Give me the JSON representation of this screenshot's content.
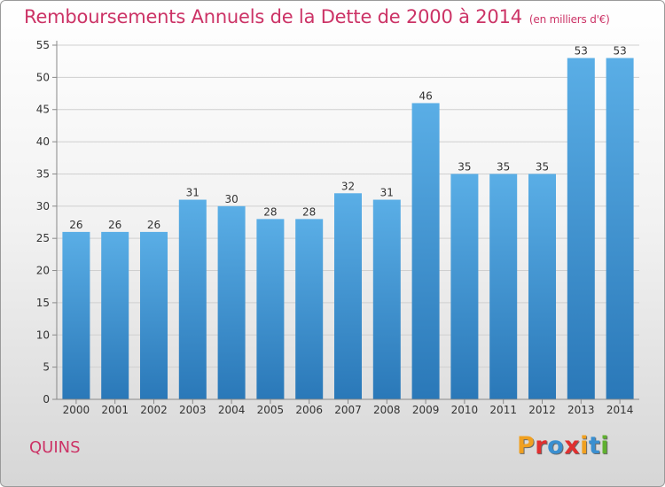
{
  "chart_data": {
    "type": "bar",
    "title": "Remboursements Annuels de la Dette de 2000 à 2014",
    "subtitle": "(en milliers d'€)",
    "categories": [
      "2000",
      "2001",
      "2002",
      "2003",
      "2004",
      "2005",
      "2006",
      "2007",
      "2008",
      "2009",
      "2010",
      "2011",
      "2012",
      "2013",
      "2014"
    ],
    "values": [
      26,
      26,
      26,
      31,
      30,
      28,
      28,
      32,
      31,
      46,
      35,
      35,
      35,
      53,
      53
    ],
    "ylim": [
      0,
      55
    ],
    "yticks": [
      0,
      5,
      10,
      15,
      20,
      25,
      30,
      35,
      40,
      45,
      50,
      55
    ],
    "grid": true,
    "data_labels": true
  },
  "location": "QUINS",
  "logo_text": "Proxiti",
  "colors": {
    "accent": "#cc3366",
    "bar_top": "#5aaee6",
    "bar_bottom": "#2a78b8",
    "logo": [
      "#f0a020",
      "#e03030",
      "#3a8fd0",
      "#e03030",
      "#f0a020",
      "#3a8fd0",
      "#60b030"
    ]
  }
}
